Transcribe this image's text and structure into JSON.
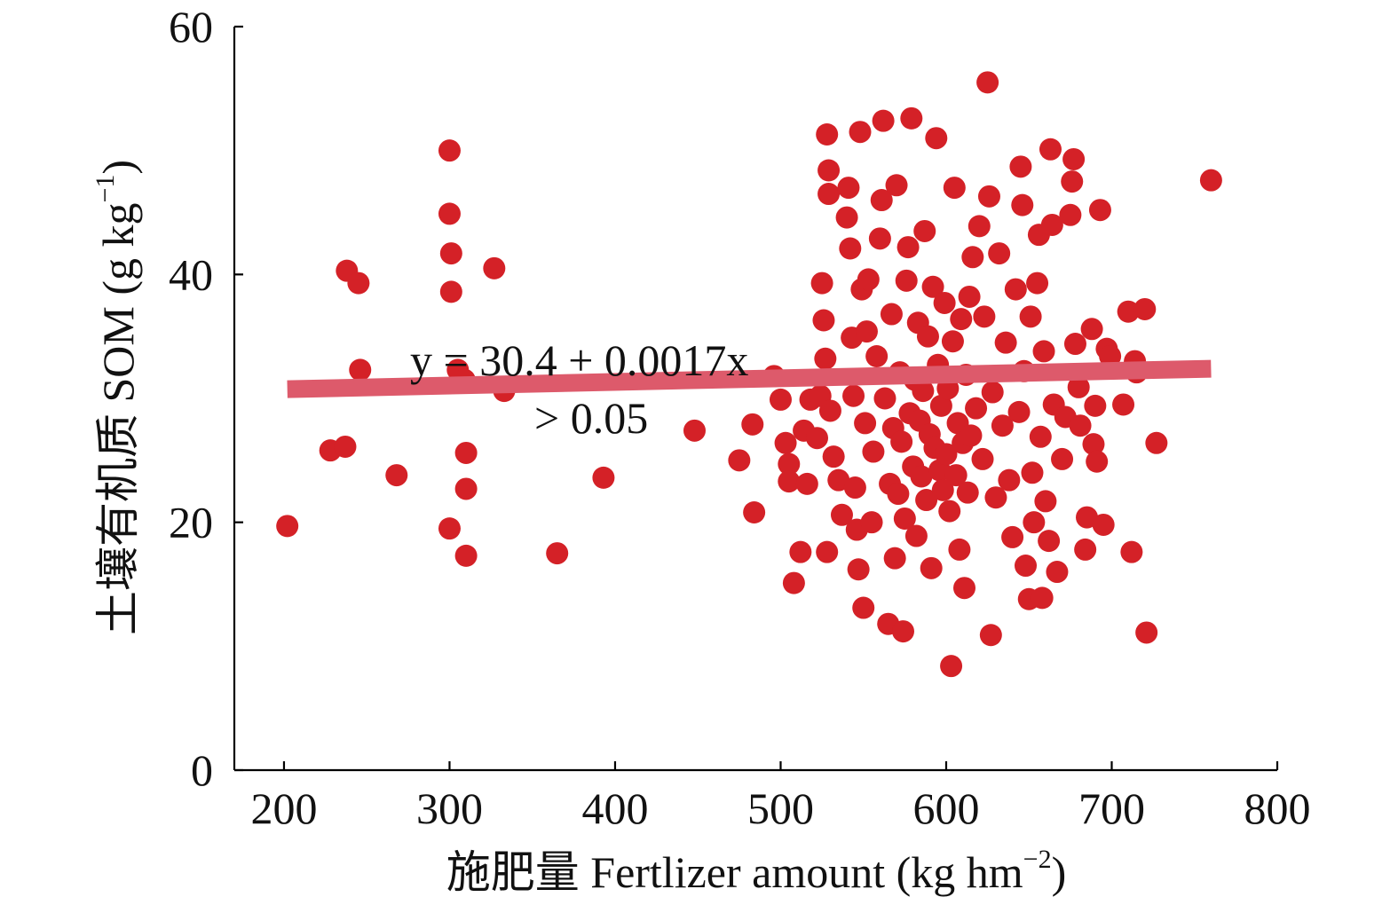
{
  "colors": {
    "points": "#d42127",
    "trend_line": "#dd5a6b",
    "axis": "#000000"
  },
  "chart_data": {
    "type": "scatter",
    "title": "",
    "xlabel": "施肥量 Fertlizer amount (kg hm",
    "xlabel_sup": "−2",
    "xlabel_end": ")",
    "ylabel": "土壤有机质 SOM (g kg",
    "ylabel_sup": "−1",
    "ylabel_end": ")",
    "xlim": [
      170,
      800
    ],
    "ylim": [
      0,
      60
    ],
    "xticks": [
      200,
      300,
      400,
      500,
      600,
      700,
      800
    ],
    "yticks": [
      0,
      20,
      40,
      60
    ],
    "xtick_labels": [
      "200",
      "300",
      "400",
      "500",
      "600",
      "700",
      "800"
    ],
    "ytick_labels": [
      "0",
      "20",
      "40",
      "60"
    ],
    "grid": false,
    "annotations": [
      "y = 30.4 + 0.0017x",
      "> 0.05"
    ],
    "trend_line": {
      "intercept": 30.4,
      "slope": 0.0017,
      "x_range": [
        202,
        760
      ]
    },
    "points": [
      [
        202,
        19.7
      ],
      [
        228,
        25.8
      ],
      [
        237,
        26.1
      ],
      [
        238,
        40.3
      ],
      [
        245,
        39.3
      ],
      [
        246,
        32.3
      ],
      [
        268,
        23.8
      ],
      [
        300,
        50.0
      ],
      [
        300,
        44.9
      ],
      [
        301,
        41.7
      ],
      [
        301,
        38.6
      ],
      [
        300,
        19.5
      ],
      [
        305,
        32.3
      ],
      [
        309,
        31.5
      ],
      [
        310,
        25.6
      ],
      [
        310,
        22.7
      ],
      [
        310,
        17.3
      ],
      [
        327,
        40.5
      ],
      [
        333,
        30.6
      ],
      [
        365,
        17.5
      ],
      [
        393,
        23.6
      ],
      [
        448,
        27.4
      ],
      [
        475,
        25.0
      ],
      [
        483,
        27.9
      ],
      [
        484,
        20.8
      ],
      [
        496,
        31.8
      ],
      [
        500,
        29.9
      ],
      [
        503,
        26.4
      ],
      [
        505,
        24.7
      ],
      [
        505,
        23.3
      ],
      [
        508,
        15.1
      ],
      [
        512,
        17.6
      ],
      [
        514,
        27.4
      ],
      [
        516,
        23.1
      ],
      [
        518,
        29.9
      ],
      [
        522,
        26.8
      ],
      [
        524,
        30.2
      ],
      [
        525,
        39.3
      ],
      [
        526,
        36.3
      ],
      [
        527,
        33.2
      ],
      [
        528,
        17.6
      ],
      [
        528,
        51.3
      ],
      [
        529,
        48.4
      ],
      [
        529,
        46.5
      ],
      [
        530,
        29.0
      ],
      [
        532,
        25.3
      ],
      [
        535,
        23.4
      ],
      [
        537,
        20.6
      ],
      [
        540,
        44.6
      ],
      [
        541,
        47.0
      ],
      [
        542,
        42.1
      ],
      [
        543,
        34.9
      ],
      [
        544,
        30.2
      ],
      [
        545,
        22.8
      ],
      [
        546,
        19.4
      ],
      [
        547,
        16.2
      ],
      [
        548,
        51.5
      ],
      [
        549,
        38.8
      ],
      [
        550,
        13.1
      ],
      [
        551,
        28.0
      ],
      [
        552,
        35.4
      ],
      [
        553,
        39.6
      ],
      [
        555,
        20.0
      ],
      [
        556,
        25.7
      ],
      [
        558,
        33.4
      ],
      [
        560,
        42.9
      ],
      [
        561,
        46.0
      ],
      [
        562,
        52.4
      ],
      [
        563,
        30.0
      ],
      [
        565,
        11.8
      ],
      [
        566,
        23.1
      ],
      [
        567,
        36.8
      ],
      [
        568,
        27.6
      ],
      [
        569,
        17.1
      ],
      [
        570,
        47.2
      ],
      [
        571,
        22.3
      ],
      [
        572,
        32.1
      ],
      [
        573,
        26.5
      ],
      [
        574,
        11.2
      ],
      [
        575,
        20.3
      ],
      [
        576,
        39.5
      ],
      [
        577,
        42.2
      ],
      [
        578,
        28.8
      ],
      [
        579,
        52.6
      ],
      [
        580,
        24.5
      ],
      [
        581,
        31.5
      ],
      [
        582,
        18.9
      ],
      [
        583,
        36.1
      ],
      [
        584,
        28.2
      ],
      [
        585,
        23.7
      ],
      [
        586,
        30.6
      ],
      [
        587,
        43.5
      ],
      [
        588,
        21.8
      ],
      [
        589,
        35.0
      ],
      [
        590,
        27.1
      ],
      [
        591,
        16.3
      ],
      [
        592,
        39.0
      ],
      [
        593,
        26.0
      ],
      [
        594,
        51.0
      ],
      [
        595,
        32.7
      ],
      [
        596,
        24.2
      ],
      [
        597,
        29.4
      ],
      [
        598,
        22.6
      ],
      [
        599,
        37.7
      ],
      [
        600,
        25.5
      ],
      [
        601,
        30.8
      ],
      [
        602,
        20.9
      ],
      [
        603,
        8.4
      ],
      [
        604,
        34.6
      ],
      [
        605,
        47.0
      ],
      [
        606,
        23.8
      ],
      [
        607,
        28.0
      ],
      [
        608,
        17.8
      ],
      [
        609,
        36.4
      ],
      [
        610,
        26.4
      ],
      [
        611,
        14.7
      ],
      [
        612,
        31.9
      ],
      [
        613,
        22.4
      ],
      [
        614,
        38.2
      ],
      [
        615,
        27.0
      ],
      [
        616,
        41.4
      ],
      [
        618,
        29.2
      ],
      [
        620,
        43.9
      ],
      [
        622,
        25.1
      ],
      [
        623,
        36.6
      ],
      [
        625,
        55.5
      ],
      [
        626,
        46.3
      ],
      [
        627,
        10.9
      ],
      [
        628,
        30.5
      ],
      [
        630,
        22.0
      ],
      [
        632,
        41.7
      ],
      [
        634,
        27.8
      ],
      [
        636,
        34.5
      ],
      [
        638,
        23.4
      ],
      [
        640,
        18.8
      ],
      [
        642,
        38.8
      ],
      [
        644,
        28.9
      ],
      [
        645,
        48.7
      ],
      [
        646,
        45.6
      ],
      [
        647,
        32.2
      ],
      [
        648,
        16.5
      ],
      [
        650,
        13.8
      ],
      [
        651,
        36.6
      ],
      [
        652,
        24.0
      ],
      [
        653,
        20.0
      ],
      [
        655,
        39.3
      ],
      [
        656,
        43.2
      ],
      [
        657,
        26.9
      ],
      [
        658,
        13.9
      ],
      [
        659,
        33.8
      ],
      [
        660,
        21.7
      ],
      [
        662,
        18.5
      ],
      [
        663,
        50.1
      ],
      [
        664,
        44.0
      ],
      [
        665,
        29.5
      ],
      [
        667,
        16.0
      ],
      [
        670,
        25.1
      ],
      [
        672,
        28.5
      ],
      [
        675,
        44.8
      ],
      [
        676,
        47.5
      ],
      [
        677,
        49.3
      ],
      [
        678,
        34.4
      ],
      [
        680,
        30.9
      ],
      [
        681,
        27.8
      ],
      [
        684,
        17.8
      ],
      [
        685,
        20.4
      ],
      [
        688,
        35.6
      ],
      [
        689,
        26.3
      ],
      [
        690,
        29.4
      ],
      [
        691,
        24.9
      ],
      [
        693,
        45.2
      ],
      [
        695,
        19.8
      ],
      [
        697,
        34.0
      ],
      [
        699,
        33.4
      ],
      [
        707,
        29.5
      ],
      [
        710,
        37.0
      ],
      [
        712,
        17.6
      ],
      [
        714,
        33.0
      ],
      [
        715,
        32.1
      ],
      [
        720,
        37.2
      ],
      [
        721,
        11.1
      ],
      [
        727,
        26.4
      ],
      [
        760,
        47.6
      ]
    ]
  }
}
